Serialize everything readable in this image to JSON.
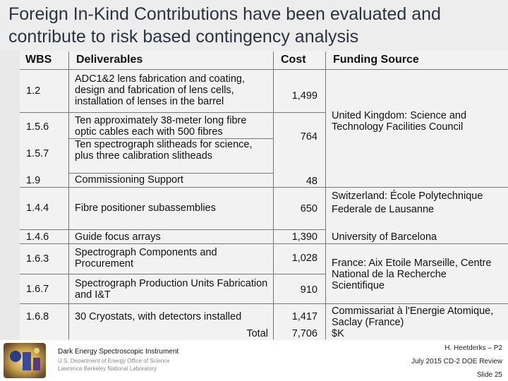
{
  "slide": {
    "title": "Foreign In-Kind Contributions have been evaluated and contribute to risk based contingency analysis"
  },
  "table": {
    "headers": {
      "wbs": "WBS",
      "deliverables": "Deliverables",
      "cost": "Cost",
      "funding": "Funding Source"
    },
    "rows": [
      {
        "wbs": "1.2",
        "deliverable": "ADC1&2 lens fabrication and coating, design and fabrication of lens cells, installation of lenses in the barrel"
      },
      {
        "wbs": "1.5.6",
        "deliverable": "Ten approximately 38-meter long fibre optic cables each with 500 fibres"
      },
      {
        "wbs": "1.5.7",
        "deliverable": "Ten spectrograph slitheads for science, plus three calibration slitheads"
      },
      {
        "wbs": "1.9",
        "deliverable": "Commissioning Support"
      },
      {
        "wbs": "1.4.4",
        "deliverable": "Fibre positioner subassemblies"
      },
      {
        "wbs": "1.4.6",
        "deliverable": "Guide focus arrays"
      },
      {
        "wbs": "1.6.3",
        "deliverable": "Spectrograph Components and Procurement"
      },
      {
        "wbs": "1.6.7",
        "deliverable": "Spectrograph Production Units Fabrication and I&T"
      },
      {
        "wbs": "1.6.8",
        "deliverable": "30 Cryostats, with detectors installed"
      }
    ],
    "costs": [
      "1,499",
      "764",
      "48",
      "650",
      "1,390",
      "1,028",
      "910",
      "1,417"
    ],
    "funding": [
      "United Kingdom: Science and Technology Facilities Council",
      "Switzerland: École Polytechnique Federale de Lausanne",
      "University of Barcelona",
      "France: Aix Etoile Marseille, Centre National de la Recherche Scientifique",
      "Commissariat à l'Energie Atomique, Saclay (France)"
    ],
    "total_label": "Total",
    "total_value": "7,706",
    "unit": "$K"
  },
  "footer": {
    "org_name": "Dark Energy Spectroscopic Instrument",
    "org_sub1": "U.S. Department of Energy Office of Science",
    "org_sub2": "Lawrence Berkeley National Laboratory",
    "author": "H. Heetderks – P2",
    "event": "July 2015 CD-2 DOE Review",
    "slide_number": "Slide 25"
  }
}
